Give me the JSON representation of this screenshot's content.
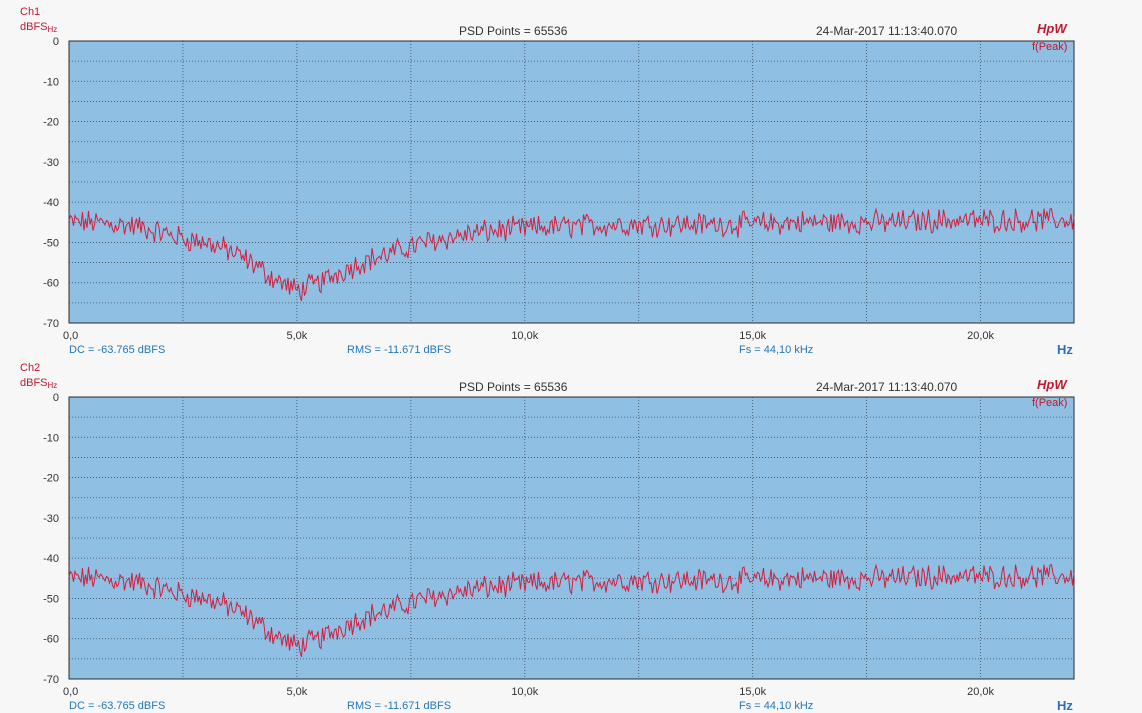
{
  "colors": {
    "plot_bg": "#90bfe4",
    "grid": "#3b4d5e",
    "trace": "#d41e3c",
    "channel_text": "#c0182f",
    "stat_text": "#2277bb",
    "axis_unit": "#2a6fc2"
  },
  "panels": [
    {
      "channel": "Ch1",
      "unit": "dBFS",
      "unit_sub": "Hz",
      "psd_points": "PSD Points = 65536",
      "timestamp": "24-Mar-2017 11:13:40.070",
      "mode": "HpW",
      "trace_label": "f(Peak)",
      "dc": "DC = -63.765 dBFS",
      "rms": "RMS = -11.671 dBFS",
      "fs": "Fs = 44,10 kHz",
      "x_unit": "Hz"
    },
    {
      "channel": "Ch2",
      "unit": "dBFS",
      "unit_sub": "Hz",
      "psd_points": "PSD Points = 65536",
      "timestamp": "24-Mar-2017 11:13:40.070",
      "mode": "HpW",
      "trace_label": "f(Peak)",
      "dc": "DC = -63.765 dBFS",
      "rms": "RMS = -11.671 dBFS",
      "fs": "Fs = 44,10 kHz",
      "x_unit": "Hz"
    }
  ],
  "chart_data": [
    {
      "type": "line",
      "xlim": [
        0,
        22050
      ],
      "ylim": [
        -70,
        0
      ],
      "x_ticks": [
        {
          "value": 0,
          "label": "0,0"
        },
        {
          "value": 5000,
          "label": "5,0k"
        },
        {
          "value": 10000,
          "label": "10,0k"
        },
        {
          "value": 15000,
          "label": "15,0k"
        },
        {
          "value": 20000,
          "label": "20,0k"
        }
      ],
      "y_ticks": [
        {
          "value": 0,
          "label": "0"
        },
        {
          "value": -10,
          "label": "-10"
        },
        {
          "value": -20,
          "label": "-20"
        },
        {
          "value": -30,
          "label": "-30"
        },
        {
          "value": -40,
          "label": "-40"
        },
        {
          "value": -50,
          "label": "-50"
        },
        {
          "value": -60,
          "label": "-60"
        },
        {
          "value": -70,
          "label": "-70"
        }
      ],
      "grid": true,
      "series": [
        {
          "x": [
            0,
            500,
            1000,
            1500,
            2000,
            2500,
            3000,
            3500,
            4000,
            4500,
            5000,
            5500,
            6000,
            6500,
            7000,
            7500,
            8000,
            8500,
            9000,
            9500,
            10000,
            11000,
            12000,
            13000,
            14000,
            15000,
            16000,
            17000,
            18000,
            19000,
            20000,
            21000,
            22050
          ],
          "values": [
            -45,
            -45,
            -45.5,
            -46,
            -47.5,
            -49,
            -50,
            -52,
            -55,
            -59,
            -62,
            -60,
            -57,
            -54.5,
            -53,
            -51,
            -49.5,
            -48.5,
            -47.5,
            -47,
            -46.5,
            -46,
            -45.5,
            -45.5,
            -45.5,
            -45.5,
            -45,
            -45,
            -45,
            -44.5,
            -44.5,
            -44.5,
            -44.5
          ]
        }
      ]
    },
    {
      "type": "line",
      "xlim": [
        0,
        22050
      ],
      "ylim": [
        -70,
        0
      ],
      "x_ticks": [
        {
          "value": 0,
          "label": "0,0"
        },
        {
          "value": 5000,
          "label": "5,0k"
        },
        {
          "value": 10000,
          "label": "10,0k"
        },
        {
          "value": 15000,
          "label": "15,0k"
        },
        {
          "value": 20000,
          "label": "20,0k"
        }
      ],
      "y_ticks": [
        {
          "value": 0,
          "label": "0"
        },
        {
          "value": -10,
          "label": "-10"
        },
        {
          "value": -20,
          "label": "-20"
        },
        {
          "value": -30,
          "label": "-30"
        },
        {
          "value": -40,
          "label": "-40"
        },
        {
          "value": -50,
          "label": "-50"
        },
        {
          "value": -60,
          "label": "-60"
        },
        {
          "value": -70,
          "label": "-70"
        }
      ],
      "grid": true,
      "series": [
        {
          "x": [
            0,
            500,
            1000,
            1500,
            2000,
            2500,
            3000,
            3500,
            4000,
            4500,
            5000,
            5500,
            6000,
            6500,
            7000,
            7500,
            8000,
            8500,
            9000,
            9500,
            10000,
            11000,
            12000,
            13000,
            14000,
            15000,
            16000,
            17000,
            18000,
            19000,
            20000,
            21000,
            22050
          ],
          "values": [
            -45,
            -45,
            -45.5,
            -46,
            -47.5,
            -49,
            -50,
            -52,
            -55,
            -59,
            -62,
            -60,
            -57,
            -54.5,
            -53,
            -51,
            -49.5,
            -48.5,
            -47.5,
            -47,
            -46.5,
            -46,
            -45.5,
            -45.5,
            -45.5,
            -45.5,
            -45,
            -45,
            -45,
            -44.5,
            -44.5,
            -44.5,
            -44.5
          ]
        }
      ]
    }
  ]
}
